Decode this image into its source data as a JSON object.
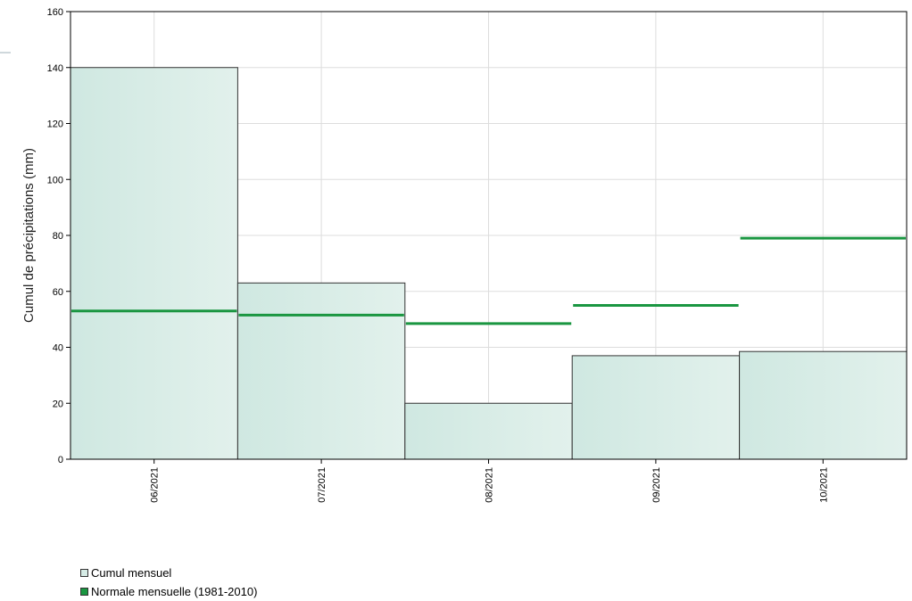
{
  "chart_data": {
    "type": "bar",
    "categories": [
      "06/2021",
      "07/2021",
      "08/2021",
      "09/2021",
      "10/2021"
    ],
    "series": [
      {
        "name": "Cumul mensuel",
        "values": [
          140,
          63,
          20,
          37,
          38.5
        ],
        "color": "#d6ece6"
      },
      {
        "name": "Normale mensuelle (1981-2010)",
        "values": [
          53,
          51.5,
          48.5,
          55,
          79
        ],
        "color": "#1a9641"
      }
    ],
    "ylabel": "Cumul de précipitations (mm)",
    "xlabel": "",
    "ylim": [
      0,
      160
    ],
    "yticks": [
      0,
      20,
      40,
      60,
      80,
      100,
      120,
      140,
      160
    ],
    "grid": true
  },
  "legend": {
    "items": [
      {
        "label": "Cumul mensuel",
        "color": "#d6ece6"
      },
      {
        "label": "Normale mensuelle (1981-2010)",
        "color": "#1a9641"
      }
    ]
  }
}
